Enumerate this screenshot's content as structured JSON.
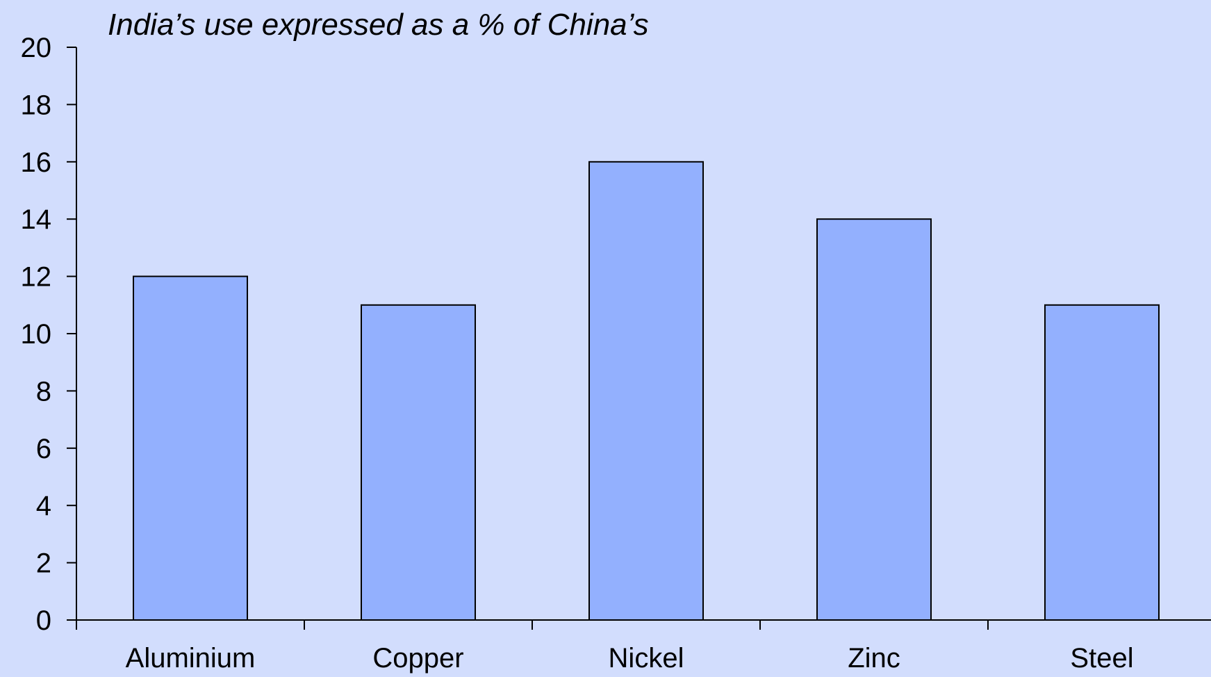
{
  "chart_data": {
    "type": "bar",
    "title": "India’s use expressed as a % of China’s",
    "categories": [
      "Aluminium",
      "Copper",
      "Nickel",
      "Zinc",
      "Steel"
    ],
    "values": [
      12,
      11,
      16,
      14,
      11
    ],
    "xlabel": "",
    "ylabel": "",
    "ylim": [
      0,
      20
    ],
    "yticks": [
      0,
      2,
      4,
      6,
      8,
      10,
      12,
      14,
      16,
      18,
      20
    ],
    "grid": false,
    "legend": "none",
    "colors": {
      "background": "#d2ddfd",
      "bar_fill": "#93b0fe",
      "bar_stroke": "#000000",
      "axis": "#000000"
    }
  }
}
